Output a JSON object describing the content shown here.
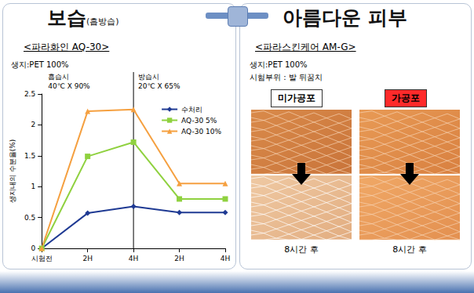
{
  "left_panel": {
    "title": "보습",
    "title_note": "(흡방습)",
    "subtitle": "<파라화인 AQ-30>",
    "fabric": "생지:PET 100%"
  },
  "chart_data": {
    "type": "line",
    "y_label": "생지내의 수분율(%)",
    "categories": [
      "시험전",
      "2H",
      "4H",
      "2H",
      "4H"
    ],
    "series": [
      {
        "name": "수처리",
        "color": "#1f3a93",
        "marker": "diamond",
        "values": [
          0,
          0.57,
          0.68,
          0.58,
          0.58
        ]
      },
      {
        "name": "AQ-30 5%",
        "color": "#8fd13f",
        "marker": "square",
        "values": [
          0,
          1.49,
          1.72,
          0.8,
          0.8
        ]
      },
      {
        "name": "AQ-30 10%",
        "color": "#f5a040",
        "marker": "triangle",
        "values": [
          0,
          2.22,
          2.25,
          1.05,
          1.05
        ]
      }
    ],
    "phases": [
      {
        "label": "흡습시",
        "condition": "40℃ X 90%"
      },
      {
        "label": "방습시",
        "condition": "20℃ X 65%"
      }
    ],
    "ylim": [
      0,
      2.5
    ],
    "yticks": [
      0,
      0.5,
      1,
      1.5,
      2,
      2.5
    ],
    "grid": false,
    "legend": "upper right"
  },
  "right_panel": {
    "title": "아름다운 피부",
    "subtitle": "<파라스킨케어 AM-G>",
    "fabric": "생지:PET 100%",
    "test_area": "시험부위 : 발 뒤꿈치",
    "columns": [
      {
        "label": "미가공포",
        "caption": "8시간 후"
      },
      {
        "label": "가공포",
        "caption": "8시간 후"
      }
    ]
  }
}
